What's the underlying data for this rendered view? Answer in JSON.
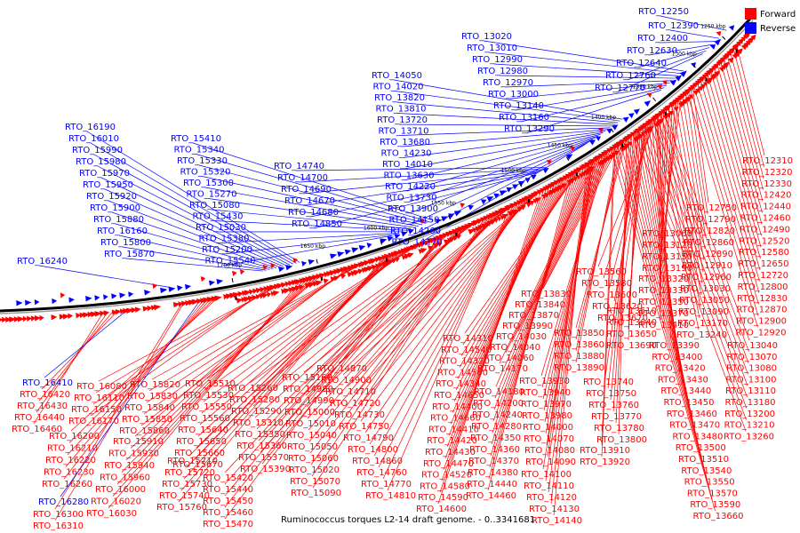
{
  "title": "Ruminococcus torques L2-14 draft genome. - 0..3341681",
  "legend": [
    {
      "label": "Forward",
      "color": "#ff0000"
    },
    {
      "label": "Reverse",
      "color": "#0000ff"
    }
  ],
  "ticks": [
    "1250 kbp",
    "1300 kbp",
    "1350 kbp",
    "1400 kbp",
    "1450 kbp",
    "1500 kbp",
    "1550 kbp",
    "1600 kbp",
    "1650 kbp",
    "1700 kbp"
  ],
  "reverse_labels": [
    "RTO_12250",
    "RTO_12390",
    "RTO_12400",
    "RTO_12630",
    "RTO_12640",
    "RTO_12760",
    "RTO_12770",
    "RTO_13020",
    "RTO_13010",
    "RTO_12990",
    "RTO_12980",
    "RTO_12970",
    "RTO_13000",
    "RTO_13140",
    "RTO_13160",
    "RTO_13290",
    "RTO_14050",
    "RTO_14020",
    "RTO_13820",
    "RTO_13810",
    "RTO_13720",
    "RTO_13710",
    "RTO_13680",
    "RTO_14230",
    "RTO_14010",
    "RTO_13630",
    "RTO_14220",
    "RTO_13730",
    "RTO_13900",
    "RTO_14150",
    "RTO_14260",
    "RTO_14270",
    "RTO_14740",
    "RTO_14700",
    "RTO_14690",
    "RTO_14670",
    "RTO_14680",
    "RTO_14850",
    "RTO_16190",
    "RTO_16010",
    "RTO_15990",
    "RTO_15980",
    "RTO_15970",
    "RTO_15950",
    "RTO_15920",
    "RTO_15900",
    "RTO_15880",
    "RTO_16160",
    "RTO_15800",
    "RTO_15870",
    "RTO_16240",
    "RTO_15410",
    "RTO_15340",
    "RTO_15330",
    "RTO_15320",
    "RTO_15300",
    "RTO_15270",
    "RTO_15080",
    "RTO_15430",
    "RTO_15030",
    "RTO_15380",
    "RTO_15200",
    "RTO_15540",
    "RTO_16410",
    "RTO_16280"
  ],
  "forward_labels": [
    "RTO_12310",
    "RTO_12320",
    "RTO_12330",
    "RTO_12420",
    "RTO_12440",
    "RTO_12460",
    "RTO_12490",
    "RTO_12520",
    "RTO_12580",
    "RTO_12650",
    "RTO_12720",
    "RTO_12800",
    "RTO_12830",
    "RTO_12870",
    "RTO_12900",
    "RTO_12920",
    "RTO_12750",
    "RTO_12790",
    "RTO_12820",
    "RTO_12860",
    "RTO_12890",
    "RTO_12910",
    "RTO_12960",
    "RTO_13030",
    "RTO_13050",
    "RTO_13090",
    "RTO_13170",
    "RTO_13240",
    "RTO_13040",
    "RTO_13070",
    "RTO_13080",
    "RTO_13100",
    "RTO_13110",
    "RTO_13180",
    "RTO_13200",
    "RTO_13210",
    "RTO_13260",
    "RTO_13060",
    "RTO_13120",
    "RTO_13150",
    "RTO_13190",
    "RTO_13560",
    "RTO_13580",
    "RTO_13600",
    "RTO_13620",
    "RTO_13670",
    "RTO_13320",
    "RTO_13330",
    "RTO_13350",
    "RTO_13370",
    "RTO_13410",
    "RTO_13610",
    "RTO_13640",
    "RTO_13650",
    "RTO_13690",
    "RTO_13390",
    "RTO_13400",
    "RTO_13420",
    "RTO_13430",
    "RTO_13440",
    "RTO_13450",
    "RTO_13460",
    "RTO_13470",
    "RTO_13480",
    "RTO_13500",
    "RTO_13510",
    "RTO_13540",
    "RTO_13550",
    "RTO_13570",
    "RTO_13590",
    "RTO_13660",
    "RTO_13830",
    "RTO_13840",
    "RTO_13870",
    "RTO_13990",
    "RTO_14030",
    "RTO_14040",
    "RTO_14060",
    "RTO_14170",
    "RTO_13850",
    "RTO_13860",
    "RTO_13880",
    "RTO_13890",
    "RTO_13740",
    "RTO_13750",
    "RTO_13760",
    "RTO_13770",
    "RTO_13780",
    "RTO_13800",
    "RTO_13930",
    "RTO_13940",
    "RTO_13970",
    "RTO_13980",
    "RTO_14000",
    "RTO_14070",
    "RTO_14080",
    "RTO_14090",
    "RTO_13910",
    "RTO_13920",
    "RTO_14100",
    "RTO_14110",
    "RTO_14120",
    "RTO_14130",
    "RTO_14140",
    "RTO_14310",
    "RTO_14540",
    "RTO_14320",
    "RTO_14560",
    "RTO_14340",
    "RTO_14650",
    "RTO_14400",
    "RTO_14660",
    "RTO_14410",
    "RTO_14420",
    "RTO_14430",
    "RTO_14470",
    "RTO_14520",
    "RTO_14580",
    "RTO_14590",
    "RTO_14600",
    "RTO_14180",
    "RTO_14200",
    "RTO_14240",
    "RTO_14280",
    "RTO_14350",
    "RTO_14360",
    "RTO_14370",
    "RTO_14380",
    "RTO_14440",
    "RTO_14460",
    "RTO_14870",
    "RTO_14900",
    "RTO_14710",
    "RTO_14720",
    "RTO_14730",
    "RTO_14750",
    "RTO_14790",
    "RTO_14800",
    "RTO_14860",
    "RTO_14760",
    "RTO_14770",
    "RTO_14810",
    "RTO_15160",
    "RTO_14980",
    "RTO_14990",
    "RTO_15000",
    "RTO_15010",
    "RTO_15040",
    "RTO_15050",
    "RTO_15060",
    "RTO_15020",
    "RTO_15070",
    "RTO_15090",
    "RTO_15260",
    "RTO_15280",
    "RTO_15290",
    "RTO_15310",
    "RTO_15350",
    "RTO_15360",
    "RTO_15370",
    "RTO_15390",
    "RTO_15510",
    "RTO_15530",
    "RTO_15550",
    "RTO_15560",
    "RTO_15640",
    "RTO_15650",
    "RTO_15660",
    "RTO_15670",
    "RTO_15420",
    "RTO_15440",
    "RTO_15450",
    "RTO_15460",
    "RTO_15470",
    "RTO_15820",
    "RTO_15830",
    "RTO_15840",
    "RTO_15850",
    "RTO_15860",
    "RTO_15710",
    "RTO_15720",
    "RTO_15730",
    "RTO_15740",
    "RTO_15760",
    "RTO_16080",
    "RTO_16110",
    "RTO_16150",
    "RTO_16170",
    "RTO_15910",
    "RTO_15930",
    "RTO_15940",
    "RTO_15960",
    "RTO_16000",
    "RTO_16020",
    "RTO_16030",
    "RTO_16420",
    "RTO_16430",
    "RTO_16440",
    "RTO_16460",
    "RTO_16200",
    "RTO_16210",
    "RTO_16220",
    "RTO_16230",
    "RTO_16260",
    "RTO_16300",
    "RTO_16310"
  ]
}
